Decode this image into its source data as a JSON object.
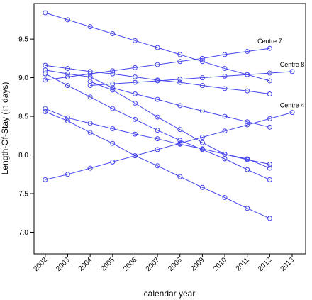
{
  "chart_data": {
    "type": "line",
    "xlabel": "calendar year",
    "ylabel": "Length-Of-Stay (in days)",
    "x_ticks": [
      2002,
      2003,
      2004,
      2005,
      2006,
      2007,
      2008,
      2009,
      2010,
      2011,
      2012,
      2013
    ],
    "y_ticks": [
      7.0,
      7.5,
      8.0,
      8.5,
      9.0,
      9.5
    ],
    "xlim": [
      2001.5,
      2013.6
    ],
    "ylim": [
      6.72,
      9.96
    ],
    "grid": false,
    "legend": "none",
    "line_color": "#4444ee",
    "series": [
      {
        "x": [
          2002,
          2003,
          2004,
          2005,
          2006,
          2007,
          2008,
          2009,
          2010,
          2011,
          2012
        ],
        "y": [
          9.84,
          9.75,
          9.66,
          9.57,
          9.48,
          9.39,
          9.3,
          9.21,
          9.12,
          9.04,
          8.96
        ]
      },
      {
        "x": [
          2002,
          2003,
          2004,
          2005,
          2006,
          2007,
          2008,
          2009,
          2010,
          2011,
          2012
        ],
        "y": [
          8.97,
          9.01,
          9.05,
          9.09,
          9.13,
          9.17,
          9.21,
          9.25,
          9.3,
          9.34,
          9.38
        ],
        "label": "Centre 7"
      },
      {
        "x": [
          2004,
          2005,
          2006,
          2007,
          2008,
          2009,
          2010,
          2011,
          2012,
          2013
        ],
        "y": [
          8.9,
          8.92,
          8.94,
          8.96,
          8.98,
          9.0,
          9.02,
          9.04,
          9.06,
          9.08
        ],
        "label": "Centre 8"
      },
      {
        "x": [
          2002,
          2003,
          2004,
          2005,
          2006,
          2007,
          2008,
          2009,
          2010,
          2011,
          2012
        ],
        "y": [
          9.16,
          9.12,
          9.08,
          9.05,
          9.01,
          8.97,
          8.94,
          8.9,
          8.86,
          8.83,
          8.79
        ]
      },
      {
        "x": [
          2002,
          2003,
          2004,
          2005,
          2006,
          2007,
          2008,
          2009,
          2010,
          2011,
          2012
        ],
        "y": [
          9.1,
          9.05,
          9.01,
          8.87,
          8.79,
          8.72,
          8.64,
          8.57,
          8.5,
          8.43,
          8.36
        ]
      },
      {
        "x": [
          2002,
          2003,
          2004,
          2005,
          2006,
          2007,
          2008,
          2009,
          2010,
          2011,
          2012
        ],
        "y": [
          9.05,
          8.9,
          8.75,
          8.6,
          8.46,
          8.32,
          8.19,
          8.07,
          7.95,
          7.81,
          7.68
        ]
      },
      {
        "x": [
          2004,
          2005,
          2006,
          2007,
          2008,
          2009,
          2010,
          2011,
          2012
        ],
        "y": [
          8.95,
          8.84,
          8.67,
          8.49,
          8.33,
          8.16,
          8.01,
          7.95,
          7.83
        ]
      },
      {
        "x": [
          2002,
          2003,
          2004,
          2005,
          2006,
          2007,
          2008,
          2009,
          2010,
          2011,
          2012
        ],
        "y": [
          8.6,
          8.48,
          8.41,
          8.34,
          8.27,
          8.21,
          8.14,
          8.08,
          8.01,
          7.94,
          7.88
        ]
      },
      {
        "x": [
          2002,
          2003,
          2004,
          2005,
          2006,
          2007,
          2008,
          2009,
          2010,
          2011,
          2012
        ],
        "y": [
          8.56,
          8.44,
          8.29,
          8.15,
          7.99,
          7.86,
          7.72,
          7.58,
          7.45,
          7.31,
          7.18
        ]
      },
      {
        "x": [
          2002,
          2003,
          2004,
          2005,
          2006,
          2007,
          2008,
          2009,
          2010,
          2011,
          2012,
          2013
        ],
        "y": [
          7.68,
          7.75,
          7.83,
          7.91,
          7.99,
          8.07,
          8.15,
          8.23,
          8.31,
          8.39,
          8.47,
          8.55
        ],
        "label": "Centre 4"
      }
    ]
  }
}
